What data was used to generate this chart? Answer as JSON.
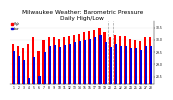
{
  "title": "Milwaukee Weather: Barometric Pressure\nDaily High/Low",
  "title_fontsize": 4.2,
  "ylabel_right": [
    "30.5",
    "30.0",
    "29.5",
    "29.0",
    "28.5"
  ],
  "ylim": [
    28.2,
    30.75
  ],
  "bar_width": 0.42,
  "background_color": "#ffffff",
  "plot_bg": "#ffffff",
  "days": [
    1,
    2,
    3,
    4,
    5,
    6,
    7,
    8,
    9,
    10,
    11,
    12,
    13,
    14,
    15,
    16,
    17,
    18,
    19,
    20,
    21,
    22,
    23,
    24,
    25,
    26,
    27,
    28
  ],
  "high": [
    29.85,
    29.75,
    29.65,
    29.85,
    30.1,
    29.55,
    30.0,
    30.1,
    30.1,
    30.05,
    30.1,
    30.15,
    30.2,
    30.25,
    30.3,
    30.35,
    30.4,
    30.5,
    30.3,
    30.1,
    30.2,
    30.15,
    30.15,
    30.05,
    30.0,
    29.95,
    30.1,
    30.1
  ],
  "low": [
    29.55,
    29.35,
    29.2,
    28.45,
    29.3,
    28.55,
    29.5,
    29.75,
    29.8,
    29.7,
    29.8,
    29.85,
    29.9,
    29.95,
    30.0,
    30.05,
    30.1,
    30.2,
    29.9,
    29.7,
    29.85,
    29.75,
    29.75,
    29.65,
    29.65,
    29.6,
    29.75,
    29.75
  ],
  "high_color": "#ff0000",
  "low_color": "#0000dd",
  "dashed_indices": [
    19,
    20
  ],
  "legend_high_label": "High",
  "legend_low_label": "Low",
  "baseline": 28.2
}
